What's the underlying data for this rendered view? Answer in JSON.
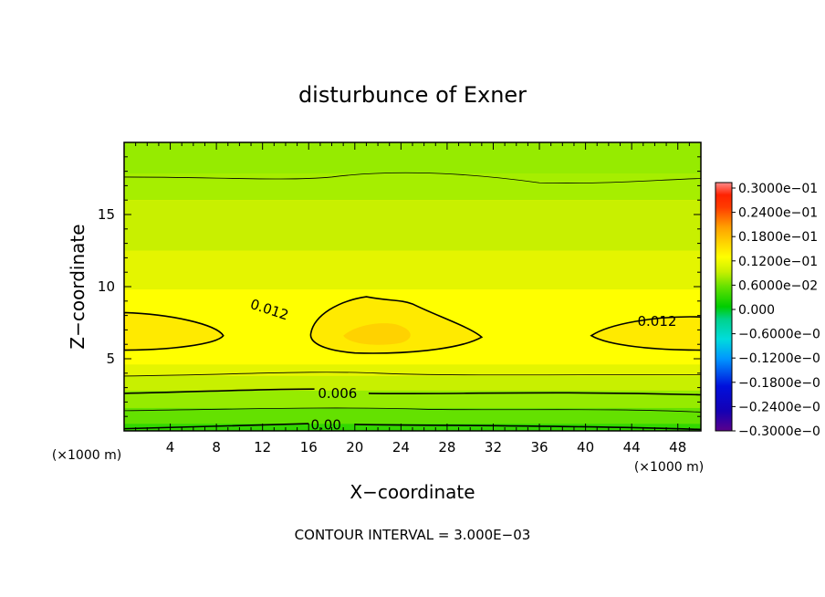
{
  "chart_data": {
    "type": "heatmap",
    "title": "disturbunce of Exner",
    "xlabel": "X−coordinate",
    "ylabel": "Z−coordinate",
    "x_unit_left": "(×1000 m)",
    "x_unit_right": "(×1000 m)",
    "xlim": [
      0,
      50
    ],
    "ylim": [
      0,
      20
    ],
    "x_ticks": [
      4,
      8,
      12,
      16,
      20,
      24,
      28,
      32,
      36,
      40,
      44,
      48
    ],
    "x_tick_labels": [
      "4",
      "8",
      "12",
      "16",
      "20",
      "24",
      "28",
      "32",
      "36",
      "40",
      "44",
      "48"
    ],
    "y_ticks": [
      5,
      10,
      15
    ],
    "y_tick_labels": [
      "5",
      "10",
      "15"
    ],
    "colorbar": {
      "range": [
        -0.03,
        0.03
      ],
      "labels": [
        "0.3000e−01",
        "0.2400e−01",
        "0.1800e−01",
        "0.1200e−01",
        "0.6000e−02",
        "0.000",
        "−0.6000e−0",
        "−0.1200e−0",
        "−0.1800e−0",
        "−0.2400e−0",
        "−0.3000e−0"
      ],
      "colors": [
        "#ff2200",
        "#ff3c00",
        "#ff6e00",
        "#ffa000",
        "#ffd200",
        "#ffff00",
        "#c8f000",
        "#96eb00",
        "#64e100",
        "#32d700",
        "#00cd00",
        "#00d28c",
        "#00dcdc",
        "#0096ff",
        "#0050ff",
        "#0010dc",
        "#1400b4",
        "#5a008c"
      ]
    },
    "levels": [
      {
        "z": 19.0,
        "value": 0.0105,
        "color": "#96eb00"
      },
      {
        "z": 17.5,
        "value": 0.01,
        "color": "#a0ef00"
      },
      {
        "z": 14.0,
        "value": 0.011,
        "color": "#c8f000"
      },
      {
        "z": 11.0,
        "value": 0.0125,
        "color": "#e4f500"
      },
      {
        "z": 8.0,
        "value": 0.0145,
        "color": "#ffff00"
      },
      {
        "z": 7.0,
        "value": 0.015,
        "color": "#ffea00"
      },
      {
        "z": 5.0,
        "value": 0.013,
        "color": "#ffff00"
      },
      {
        "z": 3.8,
        "value": 0.01,
        "color": "#c8f000"
      },
      {
        "z": 2.8,
        "value": 0.0075,
        "color": "#96eb00"
      },
      {
        "z": 1.5,
        "value": 0.0045,
        "color": "#64e100"
      },
      {
        "z": 0.5,
        "value": 0.0015,
        "color": "#32d700"
      }
    ],
    "contours": [
      {
        "label": "0.012",
        "x": 12.6,
        "y": 8.4
      },
      {
        "label": "0.012",
        "x": 46.2,
        "y": 7.6
      },
      {
        "label": "0.006",
        "x": 18.5,
        "y": 2.6
      },
      {
        "label": "0.00",
        "x": 17.5,
        "y": 0.4
      }
    ],
    "annotation": "CONTOUR INTERVAL = 3.000E−03"
  }
}
